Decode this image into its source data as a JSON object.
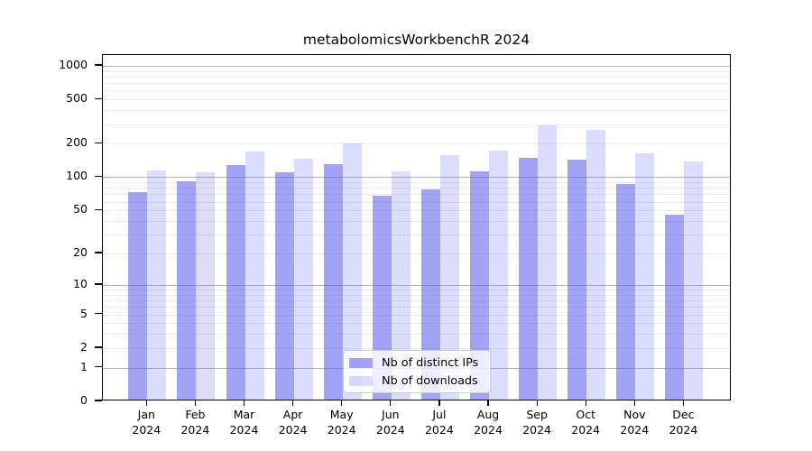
{
  "chart_data": {
    "type": "bar",
    "title": "metabolomicsWorkbenchR 2024",
    "categories": [
      "Jan\n2024",
      "Feb\n2024",
      "Mar\n2024",
      "Apr\n2024",
      "May\n2024",
      "Jun\n2024",
      "Jul\n2024",
      "Aug\n2024",
      "Sep\n2024",
      "Oct\n2024",
      "Nov\n2024",
      "Dec\n2024"
    ],
    "series": [
      {
        "name": "Nb of distinct IPs",
        "color": "rgba(102,102,240,0.60)",
        "values": [
          70,
          88,
          124,
          106,
          126,
          66,
          75,
          108,
          145,
          138,
          84,
          44
        ]
      },
      {
        "name": "Nb of downloads",
        "color": "rgba(102,102,240,0.23)",
        "values": [
          110,
          107,
          164,
          142,
          196,
          109,
          151,
          166,
          280,
          258,
          158,
          134
        ]
      }
    ],
    "yscale": "log10(1+x)",
    "y_ticks": [
      1000,
      500,
      200,
      100,
      50,
      20,
      10,
      5,
      2,
      1,
      0
    ],
    "ylim": [
      0,
      1250
    ],
    "grid": {
      "major_at": [
        1,
        10,
        100,
        1000
      ],
      "major_color": "#b4b4b4",
      "minor_color": "#eaeaea"
    },
    "legend": {
      "position": "bottom-center"
    },
    "axis_color": "#000000",
    "background": "#ffffff"
  }
}
